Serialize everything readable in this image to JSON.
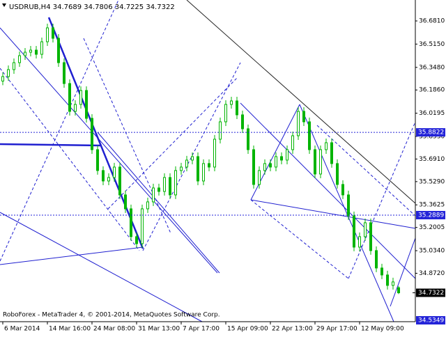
{
  "chart_data": {
    "type": "candlestick",
    "title": "USDRUB,H4 34.7689 34.7806 34.7225 34.7322",
    "footer": "RoboForex - MetaTrader 4, © 2001-2014, MetaQuotes Software Corp.",
    "categories": [
      "6 Mar 2014",
      null,
      null,
      null,
      null,
      null,
      null,
      null,
      "14 Mar 16:00",
      null,
      null,
      null,
      null,
      null,
      null,
      null,
      "24 Mar 08:00",
      null,
      null,
      null,
      null,
      null,
      null,
      null,
      "31 Mar 13:00",
      null,
      null,
      null,
      null,
      null,
      null,
      null,
      "7 Apr 17:00",
      null,
      null,
      null,
      null,
      null,
      null,
      null,
      "15 Apr 09:00",
      null,
      null,
      null,
      null,
      null,
      null,
      null,
      "22 Apr 13:00",
      null,
      null,
      null,
      null,
      null,
      null,
      null,
      "29 Apr 17:00",
      null,
      null,
      null,
      null,
      null,
      null,
      null,
      "12 May 09:00",
      null,
      null,
      null,
      null,
      null,
      null,
      null
    ],
    "open": [
      36.25,
      36.2821,
      36.332,
      36.3819,
      36.4318,
      36.4567,
      36.4717,
      36.4418,
      36.5316,
      36.6314,
      36.5566,
      36.3819,
      36.2322,
      36.0326,
      36.0825,
      36.1823,
      35.9827,
      35.7581,
      35.6085,
      35.5336,
      35.5586,
      35.6334,
      35.4338,
      35.334,
      35.1344,
      35.0845,
      35.334,
      35.3839,
      35.4837,
      35.4588,
      35.5586,
      35.4338,
      35.6085,
      35.6334,
      35.6833,
      35.7083,
      35.5336,
      35.6584,
      35.6334,
      35.833,
      35.9578,
      36.0825,
      36.1075,
      36.0077,
      35.9079,
      35.7581,
      35.5087,
      35.6085,
      35.6584,
      35.6334,
      35.7083,
      35.6833,
      35.7581,
      35.8579,
      36.0326,
      35.9578,
      35.7581,
      35.5835,
      35.7581,
      35.808,
      35.6584,
      35.5087,
      35.4338,
      35.2841,
      35.0595,
      35.1344,
      35.2342,
      35.0346,
      34.9098,
      34.8599,
      34.7851,
      34.7689
    ],
    "high": [
      36.3121,
      36.362,
      36.4119,
      36.4618,
      36.4867,
      36.5017,
      36.5017,
      36.5616,
      36.6614,
      36.6614,
      36.5866,
      36.4119,
      36.2622,
      36.1125,
      36.2123,
      36.2123,
      36.0127,
      35.7881,
      35.6385,
      35.5886,
      35.6634,
      35.6634,
      35.4638,
      35.364,
      35.1644,
      35.364,
      35.4139,
      35.5137,
      35.5137,
      35.5886,
      35.5886,
      35.6385,
      35.6634,
      35.7133,
      35.7383,
      35.7383,
      35.6884,
      35.6884,
      35.863,
      35.9878,
      36.1125,
      36.1375,
      36.1375,
      36.0377,
      35.9379,
      35.7881,
      35.6385,
      35.6884,
      35.6884,
      35.7383,
      35.7383,
      35.7881,
      35.8879,
      36.0626,
      36.0626,
      35.9878,
      35.7881,
      35.7881,
      35.838,
      35.838,
      35.6884,
      35.5387,
      35.4638,
      35.3141,
      35.1644,
      35.2642,
      35.2642,
      35.0646,
      34.9398,
      34.8899,
      34.84,
      34.7806
    ],
    "low": [
      36.22,
      36.2521,
      36.302,
      36.3519,
      36.4018,
      36.4267,
      36.4118,
      36.4118,
      36.5016,
      36.5266,
      36.3519,
      36.2022,
      36.0026,
      36.0026,
      36.0525,
      35.9527,
      35.7281,
      35.5785,
      35.5036,
      35.5036,
      35.5286,
      35.4038,
      35.304,
      35.1044,
      35.0545,
      35.0545,
      35.304,
      35.3539,
      35.4288,
      35.4288,
      35.4038,
      35.4038,
      35.5785,
      35.6034,
      35.6533,
      35.5036,
      35.5036,
      35.6034,
      35.6034,
      35.803,
      35.9278,
      36.0525,
      35.9777,
      35.8779,
      35.7281,
      35.4787,
      35.4787,
      35.5785,
      35.6034,
      35.6034,
      35.6533,
      35.6533,
      35.7281,
      35.8279,
      35.9278,
      35.7281,
      35.5535,
      35.5535,
      35.7281,
      35.6284,
      35.4787,
      35.4038,
      35.2541,
      35.0295,
      35.0295,
      35.1044,
      35.0046,
      34.8798,
      34.8299,
      34.7551,
      34.7551,
      34.7225
    ],
    "close": [
      36.2821,
      36.332,
      36.3819,
      36.4318,
      36.4567,
      36.4717,
      36.4418,
      36.5316,
      36.6314,
      36.5566,
      36.3819,
      36.2322,
      36.0326,
      36.0825,
      36.1823,
      35.9827,
      35.7581,
      35.6085,
      35.5336,
      35.5586,
      35.6334,
      35.4338,
      35.334,
      35.1344,
      35.0845,
      35.334,
      35.3839,
      35.4837,
      35.4588,
      35.5586,
      35.4338,
      35.6085,
      35.6334,
      35.6833,
      35.7083,
      35.5336,
      35.6584,
      35.6334,
      35.833,
      35.9578,
      36.0825,
      36.1075,
      36.0077,
      35.9079,
      35.7581,
      35.5087,
      35.6085,
      35.6584,
      35.6334,
      35.7083,
      35.6833,
      35.7581,
      35.8579,
      36.0326,
      35.9578,
      35.7581,
      35.5835,
      35.7581,
      35.808,
      35.6584,
      35.5087,
      35.4338,
      35.2841,
      35.0595,
      35.1344,
      35.2342,
      35.0346,
      34.9098,
      34.8599,
      34.7851,
      34.81,
      34.7322
    ],
    "color": "#00b400",
    "ylim": [
      34.525,
      36.831
    ],
    "yticks": [
      {
        "value": 36.681,
        "label": "36.6810"
      },
      {
        "value": 36.515,
        "label": "36.5150"
      },
      {
        "value": 36.348,
        "label": "36.3480"
      },
      {
        "value": 36.186,
        "label": "36.1860"
      },
      36.0195,
      {
        "value": 35.853,
        "label": "35.8530"
      },
      {
        "value": 35.691,
        "label": "35.6910"
      },
      {
        "value": 35.529,
        "label": "35.5290"
      },
      35.3625,
      35.2005,
      {
        "value": 35.034,
        "label": "35.0340"
      },
      {
        "value": 34.872,
        "label": "34.8720"
      }
    ],
    "hlines": [
      35.8822,
      35.2889
    ],
    "hline_color": "#2323d8",
    "bid": 34.7322,
    "low_marker": 34.5349
  }
}
